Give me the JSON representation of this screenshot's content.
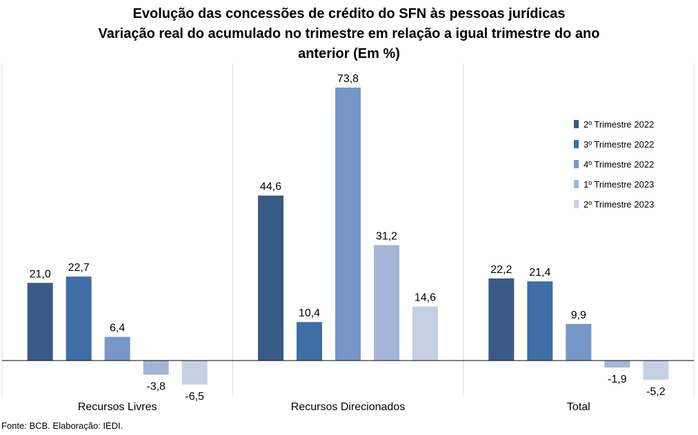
{
  "chart_data": {
    "type": "bar",
    "title_lines": [
      "Evolução das concessões de crédito do SFN às pessoas jurídicas",
      "Variação real do acumulado no trimestre em relação a igual trimestre do ano",
      "anterior (Em %)"
    ],
    "categories": [
      "Recursos Livres",
      "Recursos Direcionados",
      "Total"
    ],
    "series": [
      {
        "name": "2º Trimestre 2022",
        "color": "#3A5A86",
        "values": [
          21.0,
          44.6,
          22.2
        ],
        "labels": [
          "21,0",
          "44,6",
          "22,2"
        ]
      },
      {
        "name": "3º Trimestre 2022",
        "color": "#3F6DA4",
        "values": [
          22.7,
          10.4,
          21.4
        ],
        "labels": [
          "22,7",
          "10,4",
          "21,4"
        ]
      },
      {
        "name": "4º Trimestre 2022",
        "color": "#7697C8",
        "values": [
          6.4,
          73.8,
          9.9
        ],
        "labels": [
          "6,4",
          "73,8",
          "9,9"
        ]
      },
      {
        "name": "1º Trimestre 2023",
        "color": "#A3B6D7",
        "values": [
          -3.8,
          31.2,
          -1.9
        ],
        "labels": [
          "-3,8",
          "31,2",
          "-1,9"
        ]
      },
      {
        "name": "2º Trimestre 2023",
        "color": "#C6D0E4",
        "values": [
          -6.5,
          14.6,
          -5.2
        ],
        "labels": [
          "-6,5",
          "14,6",
          "-5,2"
        ]
      }
    ],
    "ylim": [
      -10,
      80
    ],
    "grid": false,
    "legend_position": "right"
  },
  "source": "Fonte: BCB. Elaboração: IEDI."
}
